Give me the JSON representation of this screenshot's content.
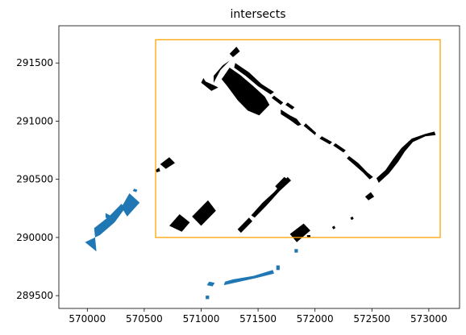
{
  "chart_data": {
    "type": "map",
    "title": "intersects",
    "xlim": [
      569750,
      573270
    ],
    "ylim": [
      289390,
      291820
    ],
    "xticks": [
      570000,
      570500,
      571000,
      571500,
      572000,
      572500,
      573000
    ],
    "yticks": [
      289500,
      290000,
      290500,
      291000,
      291500
    ],
    "grid": false,
    "bbox": {
      "xmin": 570600,
      "ymin": 290000,
      "xmax": 573100,
      "ymax": 291700
    },
    "colors": {
      "outside": "#1f77b4",
      "inside": "#000000",
      "bbox": "#ffa500"
    },
    "polygons": [
      {
        "group": "outside",
        "coords": [
          [
            569980,
            289960
          ],
          [
            570110,
            290020
          ],
          [
            570240,
            290130
          ],
          [
            570330,
            290250
          ],
          [
            570300,
            290290
          ],
          [
            570190,
            290180
          ],
          [
            570060,
            290080
          ],
          [
            570080,
            289880
          ]
        ]
      },
      {
        "group": "outside",
        "coords": [
          [
            570160,
            290210
          ],
          [
            570220,
            290180
          ],
          [
            570210,
            290150
          ],
          [
            570160,
            290170
          ]
        ]
      },
      {
        "group": "outside",
        "coords": [
          [
            570350,
            290180
          ],
          [
            570460,
            290300
          ],
          [
            570370,
            290380
          ],
          [
            570300,
            290260
          ]
        ]
      },
      {
        "group": "outside",
        "coords": [
          [
            570410,
            290420
          ],
          [
            570440,
            290410
          ],
          [
            570430,
            290390
          ],
          [
            570400,
            290400
          ]
        ]
      },
      {
        "group": "outside",
        "coords": [
          [
            571200,
            289590
          ],
          [
            571340,
            289620
          ],
          [
            571480,
            289650
          ],
          [
            571640,
            289690
          ],
          [
            571630,
            289720
          ],
          [
            571460,
            289670
          ],
          [
            571280,
            289640
          ],
          [
            571210,
            289620
          ]
        ]
      },
      {
        "group": "outside",
        "coords": [
          [
            571050,
            289590
          ],
          [
            571100,
            289580
          ],
          [
            571120,
            289610
          ],
          [
            571070,
            289620
          ]
        ]
      },
      {
        "group": "outside",
        "coords": [
          [
            571040,
            289470
          ],
          [
            571070,
            289470
          ],
          [
            571070,
            289500
          ],
          [
            571040,
            289500
          ]
        ]
      },
      {
        "group": "outside",
        "coords": [
          [
            571660,
            289720
          ],
          [
            571690,
            289720
          ],
          [
            571690,
            289760
          ],
          [
            571660,
            289760
          ]
        ]
      },
      {
        "group": "outside",
        "coords": [
          [
            571820,
            289870
          ],
          [
            571850,
            289870
          ],
          [
            571850,
            289900
          ],
          [
            571820,
            289900
          ]
        ]
      },
      {
        "group": "inside",
        "coords": [
          [
            571020,
            291370
          ],
          [
            571040,
            291340
          ],
          [
            571110,
            291310
          ],
          [
            571150,
            291290
          ],
          [
            571090,
            291260
          ],
          [
            571040,
            291300
          ],
          [
            571000,
            291330
          ]
        ]
      },
      {
        "group": "inside",
        "coords": [
          [
            571110,
            291330
          ],
          [
            571170,
            291440
          ],
          [
            571250,
            291520
          ],
          [
            571190,
            291480
          ],
          [
            571110,
            291390
          ]
        ]
      },
      {
        "group": "inside",
        "coords": [
          [
            571250,
            291580
          ],
          [
            571310,
            291640
          ],
          [
            571340,
            291600
          ],
          [
            571280,
            291550
          ]
        ]
      },
      {
        "group": "inside",
        "coords": [
          [
            571250,
            291460
          ],
          [
            571340,
            291400
          ],
          [
            571460,
            291300
          ],
          [
            571560,
            291210
          ],
          [
            571600,
            291140
          ],
          [
            571510,
            291050
          ],
          [
            571410,
            291090
          ],
          [
            571320,
            291180
          ],
          [
            571230,
            291300
          ],
          [
            571180,
            291360
          ]
        ]
      },
      {
        "group": "inside",
        "coords": [
          [
            571300,
            291500
          ],
          [
            571420,
            291420
          ],
          [
            571530,
            291320
          ],
          [
            571640,
            291250
          ],
          [
            571610,
            291230
          ],
          [
            571500,
            291300
          ],
          [
            571390,
            291390
          ],
          [
            571290,
            291460
          ]
        ]
      },
      {
        "group": "inside",
        "coords": [
          [
            571620,
            291200
          ],
          [
            571700,
            291140
          ],
          [
            571720,
            291160
          ],
          [
            571640,
            291220
          ]
        ]
      },
      {
        "group": "inside",
        "coords": [
          [
            571740,
            291140
          ],
          [
            571800,
            291100
          ],
          [
            571820,
            291120
          ],
          [
            571760,
            291160
          ]
        ]
      },
      {
        "group": "inside",
        "coords": [
          [
            571700,
            291100
          ],
          [
            571780,
            291050
          ],
          [
            571840,
            291020
          ],
          [
            571880,
            290970
          ],
          [
            571850,
            290960
          ],
          [
            571780,
            291010
          ],
          [
            571700,
            291060
          ]
        ]
      },
      {
        "group": "inside",
        "coords": [
          [
            571900,
            290960
          ],
          [
            572000,
            290880
          ],
          [
            572010,
            290900
          ],
          [
            571920,
            290980
          ]
        ]
      },
      {
        "group": "inside",
        "coords": [
          [
            572040,
            290850
          ],
          [
            572130,
            290800
          ],
          [
            572150,
            290820
          ],
          [
            572060,
            290870
          ]
        ]
      },
      {
        "group": "inside",
        "coords": [
          [
            572160,
            290790
          ],
          [
            572250,
            290730
          ],
          [
            572270,
            290750
          ],
          [
            572180,
            290810
          ]
        ]
      },
      {
        "group": "inside",
        "coords": [
          [
            572300,
            290700
          ],
          [
            572380,
            290640
          ],
          [
            572460,
            290560
          ],
          [
            572510,
            290520
          ],
          [
            572480,
            290500
          ],
          [
            572420,
            290560
          ],
          [
            572350,
            290620
          ],
          [
            572280,
            290680
          ]
        ]
      },
      {
        "group": "inside",
        "coords": [
          [
            572540,
            290510
          ],
          [
            572620,
            290580
          ],
          [
            572690,
            290680
          ],
          [
            572760,
            290770
          ],
          [
            572850,
            290850
          ],
          [
            572970,
            290890
          ],
          [
            573050,
            290910
          ],
          [
            573060,
            290880
          ],
          [
            572970,
            290870
          ],
          [
            572860,
            290820
          ],
          [
            572790,
            290740
          ],
          [
            572730,
            290650
          ],
          [
            572650,
            290550
          ],
          [
            572560,
            290470
          ]
        ]
      },
      {
        "group": "inside",
        "coords": [
          [
            570600,
            290580
          ],
          [
            570630,
            290600
          ],
          [
            570640,
            290570
          ],
          [
            570610,
            290560
          ]
        ]
      },
      {
        "group": "inside",
        "coords": [
          [
            570640,
            290630
          ],
          [
            570720,
            290690
          ],
          [
            570770,
            290640
          ],
          [
            570690,
            290590
          ]
        ]
      },
      {
        "group": "inside",
        "coords": [
          [
            570720,
            290100
          ],
          [
            570810,
            290200
          ],
          [
            570900,
            290130
          ],
          [
            570830,
            290050
          ]
        ]
      },
      {
        "group": "inside",
        "coords": [
          [
            570920,
            290180
          ],
          [
            571060,
            290320
          ],
          [
            571130,
            290230
          ],
          [
            571000,
            290100
          ]
        ]
      },
      {
        "group": "inside",
        "coords": [
          [
            571320,
            290070
          ],
          [
            571420,
            290170
          ],
          [
            571450,
            290140
          ],
          [
            571350,
            290040
          ]
        ]
      },
      {
        "group": "inside",
        "coords": [
          [
            571440,
            290190
          ],
          [
            571540,
            290300
          ],
          [
            571640,
            290390
          ],
          [
            571760,
            290520
          ],
          [
            571790,
            290490
          ],
          [
            571690,
            290400
          ],
          [
            571570,
            290270
          ],
          [
            571470,
            290170
          ]
        ]
      },
      {
        "group": "inside",
        "coords": [
          [
            571650,
            290440
          ],
          [
            571730,
            290520
          ],
          [
            571760,
            290500
          ],
          [
            571680,
            290410
          ]
        ]
      },
      {
        "group": "inside",
        "coords": [
          [
            571780,
            290030
          ],
          [
            571900,
            290120
          ],
          [
            571960,
            290060
          ],
          [
            571840,
            289960
          ]
        ]
      },
      {
        "group": "inside",
        "coords": [
          [
            571930,
            290020
          ],
          [
            571960,
            290020
          ],
          [
            571960,
            290000
          ],
          [
            571930,
            290000
          ]
        ]
      },
      {
        "group": "inside",
        "coords": [
          [
            572150,
            290090
          ],
          [
            572170,
            290100
          ],
          [
            572180,
            290080
          ],
          [
            572160,
            290070
          ]
        ]
      },
      {
        "group": "inside",
        "coords": [
          [
            572310,
            290170
          ],
          [
            572330,
            290180
          ],
          [
            572340,
            290160
          ],
          [
            572320,
            290150
          ]
        ]
      },
      {
        "group": "inside",
        "coords": [
          [
            572440,
            290350
          ],
          [
            572490,
            290390
          ],
          [
            572520,
            290350
          ],
          [
            572470,
            290320
          ]
        ]
      }
    ]
  }
}
